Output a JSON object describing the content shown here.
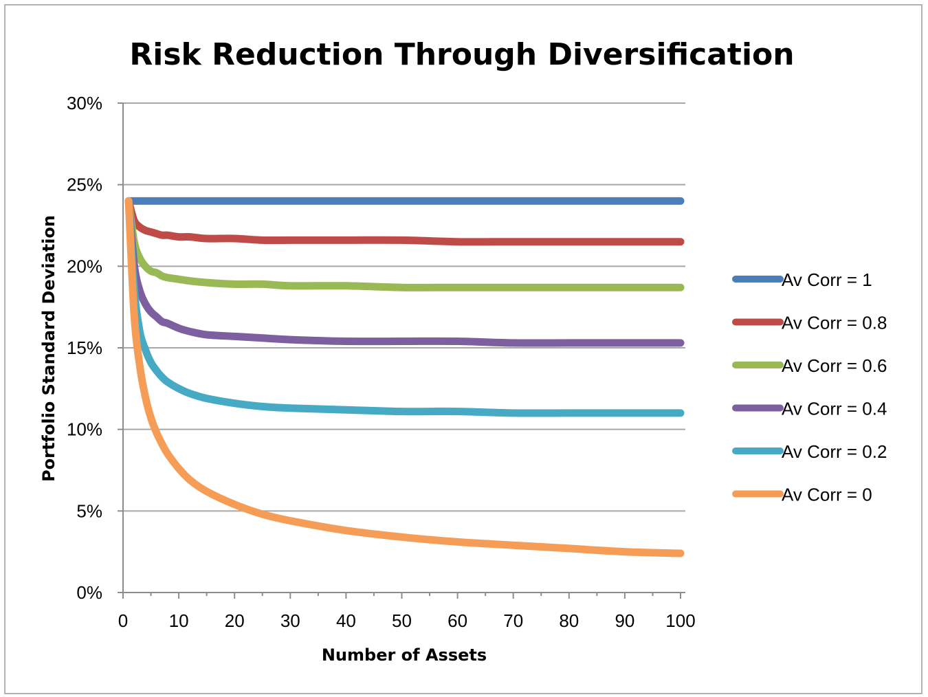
{
  "chart_data": {
    "type": "line",
    "title": "Risk Reduction Through Diversification",
    "xlabel": "Number of Assets",
    "ylabel": "Portfolio Standard Deviation",
    "xlim": [
      0,
      100
    ],
    "ylim": [
      0,
      0.3
    ],
    "xticks": [
      0,
      10,
      20,
      30,
      40,
      50,
      60,
      70,
      80,
      90,
      100
    ],
    "yticks": [
      0,
      0.05,
      0.1,
      0.15,
      0.2,
      0.25,
      0.3
    ],
    "ytick_labels": [
      "0%",
      "5%",
      "10%",
      "15%",
      "20%",
      "25%",
      "30%"
    ],
    "xtick_labels": [
      "0",
      "10",
      "20",
      "30",
      "40",
      "50",
      "60",
      "70",
      "80",
      "90",
      "100"
    ],
    "grid": "horizontal",
    "legend": "right",
    "x": [
      1,
      2,
      3,
      4,
      5,
      6,
      7,
      8,
      10,
      12,
      15,
      20,
      25,
      30,
      40,
      50,
      60,
      70,
      80,
      90,
      100
    ],
    "series": [
      {
        "name": "Av Corr = 1",
        "color": "#4a7ebb",
        "values": [
          0.24,
          0.24,
          0.24,
          0.24,
          0.24,
          0.24,
          0.24,
          0.24,
          0.24,
          0.24,
          0.24,
          0.24,
          0.24,
          0.24,
          0.24,
          0.24,
          0.24,
          0.24,
          0.24,
          0.24,
          0.24
        ]
      },
      {
        "name": "Av Corr = 0.8",
        "color": "#be4b48",
        "values": [
          0.24,
          0.228,
          0.224,
          0.222,
          0.221,
          0.22,
          0.219,
          0.219,
          0.218,
          0.218,
          0.217,
          0.217,
          0.216,
          0.216,
          0.216,
          0.216,
          0.215,
          0.215,
          0.215,
          0.215,
          0.215
        ]
      },
      {
        "name": "Av Corr = 0.6",
        "color": "#98b954",
        "values": [
          0.24,
          0.215,
          0.205,
          0.2,
          0.197,
          0.196,
          0.194,
          0.193,
          0.192,
          0.191,
          0.19,
          0.189,
          0.189,
          0.188,
          0.188,
          0.187,
          0.187,
          0.187,
          0.187,
          0.187,
          0.187
        ]
      },
      {
        "name": "Av Corr = 0.4",
        "color": "#7d5fa0",
        "values": [
          0.24,
          0.201,
          0.185,
          0.177,
          0.172,
          0.169,
          0.166,
          0.165,
          0.162,
          0.16,
          0.158,
          0.157,
          0.156,
          0.155,
          0.154,
          0.154,
          0.154,
          0.153,
          0.153,
          0.153,
          0.153
        ]
      },
      {
        "name": "Av Corr = 0.2",
        "color": "#46aac5",
        "values": [
          0.24,
          0.186,
          0.16,
          0.149,
          0.141,
          0.136,
          0.132,
          0.129,
          0.125,
          0.122,
          0.119,
          0.116,
          0.114,
          0.113,
          0.112,
          0.111,
          0.111,
          0.11,
          0.11,
          0.11,
          0.11
        ]
      },
      {
        "name": "Av Corr = 0",
        "color": "#f59d56",
        "values": [
          0.24,
          0.17,
          0.139,
          0.12,
          0.107,
          0.098,
          0.091,
          0.085,
          0.076,
          0.069,
          0.062,
          0.054,
          0.048,
          0.044,
          0.038,
          0.034,
          0.031,
          0.029,
          0.027,
          0.025,
          0.024
        ]
      }
    ]
  }
}
